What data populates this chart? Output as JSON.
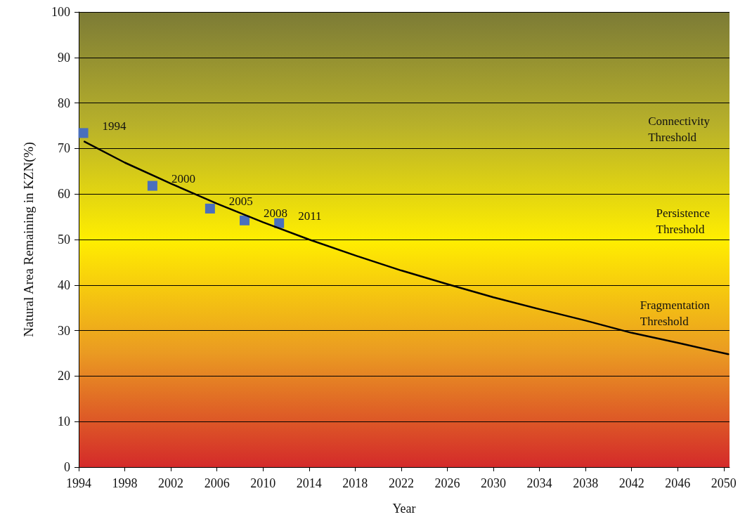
{
  "chart_data": {
    "type": "scatter",
    "xlabel": "Year",
    "ylabel": "Natural Area Remaining in KZN(%)",
    "xlim": [
      1994,
      2050.5
    ],
    "xticks": [
      1994,
      1998,
      2002,
      2006,
      2010,
      2014,
      2018,
      2022,
      2026,
      2030,
      2034,
      2038,
      2042,
      2046,
      2050
    ],
    "ylim": [
      0,
      100
    ],
    "yticks": [
      0,
      10,
      20,
      30,
      40,
      50,
      60,
      70,
      80,
      90,
      100
    ],
    "grid": "y",
    "series": [
      {
        "marker": "square",
        "color": "#4a6fbd",
        "x": [
          1994.4,
          2000.4,
          2005.4,
          2008.4,
          2011.4
        ],
        "values": [
          73.4,
          61.8,
          56.8,
          54.2,
          53.6
        ]
      },
      {
        "type": "line",
        "marker": "none",
        "line_style": "solid",
        "color": "#000000",
        "x": [
          1994.5,
          1998,
          2002,
          2006,
          2010,
          2014,
          2018,
          2022,
          2026,
          2030,
          2034,
          2038,
          2042,
          2046,
          2050.4
        ],
        "values": [
          71.5,
          66.9,
          62.3,
          57.9,
          53.8,
          50.0,
          46.5,
          43.2,
          40.2,
          37.3,
          34.7,
          32.2,
          29.5,
          27.3,
          24.8
        ]
      }
    ],
    "annotations": [
      {
        "text": "1994",
        "x": 1994.4,
        "y": 73.4
      },
      {
        "text": "2000",
        "x": 2000.4,
        "y": 61.8
      },
      {
        "text": "2005",
        "x": 2005.4,
        "y": 56.8
      },
      {
        "text": "2008",
        "x": 2008.4,
        "y": 54.2
      },
      {
        "text": "2011",
        "x": 2011.4,
        "y": 53.6
      },
      "Connectivity\nThreshold",
      "Persistence\nThreshold",
      "Fragmentation\nThreshold"
    ]
  }
}
